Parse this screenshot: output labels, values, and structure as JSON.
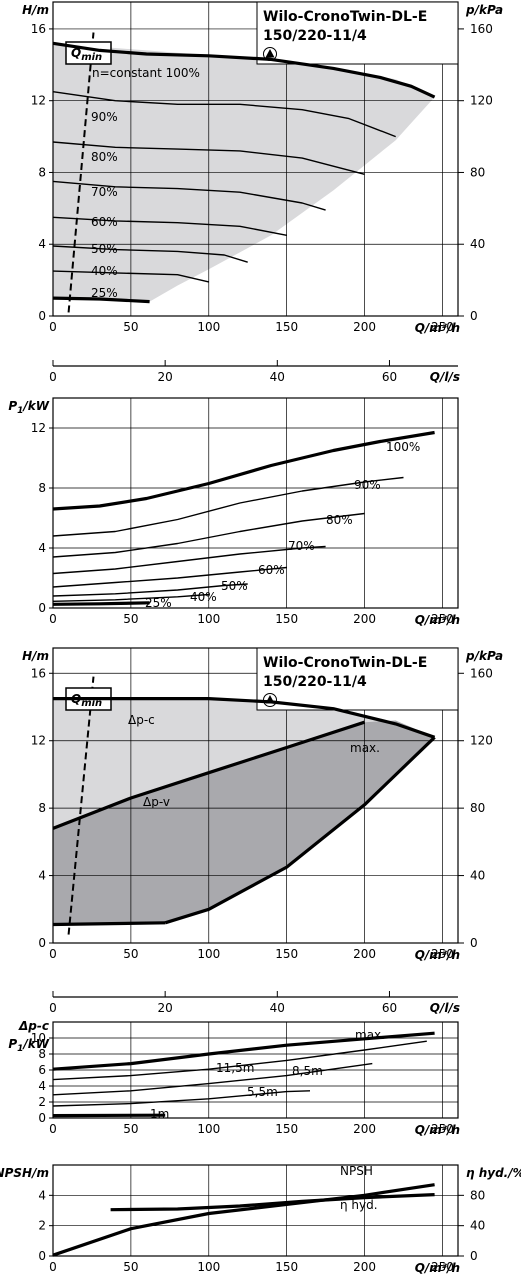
{
  "chart_data": [
    {
      "id": "head-variable",
      "type": "line",
      "title_lines": [
        "Wilo-CronoTwin-DL-E",
        "150/220-11/4"
      ],
      "ylabel": "H/m",
      "ylabel_right": "p/kPa",
      "xlabel": "Q/m³/h",
      "xlabel_secondary": "Q/l/s",
      "qmin_label": "Q",
      "qmin_sub": "min",
      "xlim": [
        0,
        260
      ],
      "ylim": [
        0,
        17.5
      ],
      "x_ticks": [
        0,
        50,
        100,
        150,
        200,
        250
      ],
      "y_ticks": [
        0,
        4,
        8,
        12,
        16
      ],
      "y_right_ticks": [
        0,
        40,
        80,
        120,
        160
      ],
      "x2_ticks": [
        0,
        20,
        40,
        60
      ],
      "area": [
        [
          0,
          15.2
        ],
        [
          60,
          14.8
        ],
        [
          120,
          14.4
        ],
        [
          180,
          13.8
        ],
        [
          220,
          13.2
        ],
        [
          245,
          12.2
        ],
        [
          220,
          9.8
        ],
        [
          180,
          7.0
        ],
        [
          140,
          4.5
        ],
        [
          100,
          2.6
        ],
        [
          80,
          1.7
        ],
        [
          62,
          0.8
        ],
        [
          0,
          1.0
        ]
      ],
      "qmin_line": [
        [
          10,
          0.2
        ],
        [
          26,
          15.8
        ]
      ],
      "series": [
        {
          "name": "n=constant 100%",
          "bold": true,
          "x": [
            0,
            30,
            60,
            100,
            140,
            180,
            210,
            230,
            245
          ],
          "y": [
            15.2,
            14.8,
            14.6,
            14.5,
            14.3,
            13.8,
            13.3,
            12.8,
            12.2
          ]
        },
        {
          "name": "90%",
          "x": [
            0,
            40,
            80,
            120,
            160,
            190,
            220
          ],
          "y": [
            12.5,
            12.0,
            11.8,
            11.8,
            11.5,
            11.0,
            10.0
          ]
        },
        {
          "name": "80%",
          "x": [
            0,
            40,
            80,
            120,
            160,
            200
          ],
          "y": [
            9.7,
            9.4,
            9.3,
            9.2,
            8.8,
            7.9
          ]
        },
        {
          "name": "70%",
          "x": [
            0,
            40,
            80,
            120,
            160,
            175
          ],
          "y": [
            7.5,
            7.2,
            7.1,
            6.9,
            6.3,
            5.9
          ]
        },
        {
          "name": "60%",
          "x": [
            0,
            40,
            80,
            120,
            150
          ],
          "y": [
            5.5,
            5.3,
            5.2,
            5.0,
            4.5
          ]
        },
        {
          "name": "50%",
          "x": [
            0,
            40,
            80,
            110,
            125
          ],
          "y": [
            3.9,
            3.7,
            3.6,
            3.4,
            3.0
          ]
        },
        {
          "name": "40%",
          "x": [
            0,
            40,
            80,
            100
          ],
          "y": [
            2.5,
            2.4,
            2.3,
            1.9
          ]
        },
        {
          "name": "25%",
          "bold": true,
          "x": [
            0,
            30,
            62
          ],
          "y": [
            1.0,
            0.95,
            0.8
          ]
        }
      ]
    },
    {
      "id": "power-variable",
      "type": "line",
      "ylabel_main": "P",
      "ylabel_sub": "1",
      "ylabel_unit": "/kW",
      "xlabel": "Q/m³/h",
      "xlim": [
        0,
        260
      ],
      "ylim": [
        0,
        14
      ],
      "x_ticks": [
        0,
        50,
        100,
        150,
        200,
        250
      ],
      "y_ticks": [
        0,
        4,
        8,
        12
      ],
      "series": [
        {
          "name": "100%",
          "bold": true,
          "x": [
            0,
            30,
            60,
            100,
            140,
            180,
            210,
            245
          ],
          "y": [
            6.6,
            6.8,
            7.3,
            8.3,
            9.5,
            10.5,
            11.1,
            11.7
          ]
        },
        {
          "name": "90%",
          "x": [
            0,
            40,
            80,
            120,
            160,
            200,
            225
          ],
          "y": [
            4.8,
            5.1,
            5.9,
            7.0,
            7.8,
            8.4,
            8.7
          ]
        },
        {
          "name": "80%",
          "x": [
            0,
            40,
            80,
            120,
            160,
            200
          ],
          "y": [
            3.4,
            3.7,
            4.3,
            5.1,
            5.8,
            6.3
          ]
        },
        {
          "name": "70%",
          "x": [
            0,
            40,
            80,
            120,
            160,
            175
          ],
          "y": [
            2.3,
            2.6,
            3.1,
            3.6,
            4.0,
            4.1
          ]
        },
        {
          "name": "60%",
          "x": [
            0,
            40,
            80,
            120,
            150
          ],
          "y": [
            1.4,
            1.7,
            2.0,
            2.4,
            2.7
          ]
        },
        {
          "name": "50%",
          "x": [
            0,
            40,
            80,
            110,
            125
          ],
          "y": [
            0.8,
            0.95,
            1.2,
            1.5,
            1.6
          ]
        },
        {
          "name": "40%",
          "x": [
            0,
            40,
            80,
            100
          ],
          "y": [
            0.45,
            0.55,
            0.75,
            0.9
          ]
        },
        {
          "name": "25%",
          "bold": true,
          "x": [
            0,
            30,
            62
          ],
          "y": [
            0.25,
            0.28,
            0.35
          ]
        }
      ]
    },
    {
      "id": "head-dp",
      "type": "area",
      "title_lines": [
        "Wilo-CronoTwin-DL-E",
        "150/220-11/4"
      ],
      "ylabel": "H/m",
      "ylabel_right": "p/kPa",
      "xlabel": "Q/m³/h",
      "xlabel_secondary": "Q/l/s",
      "qmin_label": "Q",
      "qmin_sub": "min",
      "xlim": [
        0,
        260
      ],
      "ylim": [
        0,
        17.5
      ],
      "x_ticks": [
        0,
        50,
        100,
        150,
        200,
        250
      ],
      "y_ticks": [
        0,
        4,
        8,
        12,
        16
      ],
      "y_right_ticks": [
        0,
        40,
        80,
        120,
        160
      ],
      "x2_ticks": [
        0,
        20,
        40,
        60
      ],
      "qmin_line": [
        [
          10,
          0.5
        ],
        [
          26,
          15.8
        ]
      ],
      "dpc_area": [
        [
          0,
          14.5
        ],
        [
          100,
          14.5
        ],
        [
          150,
          14.2
        ],
        [
          200,
          13.5
        ],
        [
          245,
          12.2
        ],
        [
          200,
          8.2
        ],
        [
          150,
          4.5
        ],
        [
          100,
          2.0
        ],
        [
          72,
          1.2
        ],
        [
          0,
          1.1
        ]
      ],
      "dpv_area": [
        [
          0,
          6.8
        ],
        [
          50,
          8.6
        ],
        [
          100,
          10.1
        ],
        [
          150,
          11.6
        ],
        [
          200,
          13.1
        ],
        [
          220,
          13.2
        ],
        [
          245,
          12.2
        ],
        [
          200,
          8.2
        ],
        [
          150,
          4.5
        ],
        [
          100,
          2.0
        ],
        [
          72,
          1.2
        ],
        [
          0,
          1.1
        ]
      ],
      "series": [
        {
          "name": "Δp-c",
          "bold": true,
          "x": [
            0,
            50,
            100,
            140,
            180,
            220,
            245
          ],
          "y": [
            14.5,
            14.5,
            14.5,
            14.3,
            13.9,
            13.0,
            12.2
          ]
        },
        {
          "name": "Δp-v",
          "bold": true,
          "x": [
            0,
            50,
            100,
            150,
            200
          ],
          "y": [
            6.8,
            8.6,
            10.1,
            11.6,
            13.1
          ]
        },
        {
          "name": "max.",
          "bold": true,
          "x": [
            72,
            100,
            150,
            200,
            245
          ],
          "y": [
            1.2,
            2.0,
            4.5,
            8.2,
            12.2
          ]
        },
        {
          "name": "min",
          "bold": true,
          "x": [
            0,
            72
          ],
          "y": [
            1.1,
            1.2
          ]
        }
      ]
    },
    {
      "id": "power-dp",
      "type": "line",
      "ylabel_top": "Δp-c",
      "ylabel_main": "P",
      "ylabel_sub": "1",
      "ylabel_unit": "/kW",
      "xlabel": "Q/m³/h",
      "xlim": [
        0,
        260
      ],
      "ylim": [
        0,
        12
      ],
      "x_ticks": [
        0,
        50,
        100,
        150,
        200,
        250
      ],
      "y_ticks": [
        0,
        2,
        4,
        6,
        8,
        10
      ],
      "series": [
        {
          "name": "max.",
          "bold": true,
          "x": [
            0,
            50,
            100,
            150,
            200,
            245
          ],
          "y": [
            6.1,
            6.8,
            8.0,
            9.1,
            9.9,
            10.6
          ]
        },
        {
          "name": "11,5m",
          "x": [
            0,
            50,
            100,
            150,
            200,
            240
          ],
          "y": [
            4.8,
            5.3,
            6.1,
            7.2,
            8.5,
            9.6
          ]
        },
        {
          "name": "8,5m",
          "x": [
            0,
            50,
            100,
            150,
            205
          ],
          "y": [
            2.9,
            3.4,
            4.3,
            5.3,
            6.8
          ]
        },
        {
          "name": "5,5m",
          "x": [
            0,
            50,
            100,
            150,
            165
          ],
          "y": [
            1.5,
            1.8,
            2.4,
            3.3,
            3.4
          ]
        },
        {
          "name": "1m",
          "bold": true,
          "x": [
            0,
            72
          ],
          "y": [
            0.3,
            0.35
          ]
        }
      ]
    },
    {
      "id": "npsh",
      "type": "line",
      "ylabel": "NPSH/m",
      "ylabel_right": "η hyd./%",
      "xlabel": "Q/m³/h",
      "xlim": [
        0,
        260
      ],
      "ylim": [
        0,
        6
      ],
      "x_ticks": [
        0,
        50,
        100,
        150,
        200,
        250
      ],
      "y_ticks": [
        0,
        2,
        4
      ],
      "y_right_ticks": [
        0,
        40,
        80
      ],
      "series": [
        {
          "name": "NPSH",
          "bold": true,
          "x": [
            0,
            50,
            100,
            150,
            200,
            245
          ],
          "y": [
            0.05,
            1.8,
            2.8,
            3.4,
            4.0,
            4.7
          ]
        },
        {
          "name": "η hyd.",
          "bold": true,
          "x": [
            37,
            80,
            120,
            160,
            200,
            245
          ],
          "y": [
            3.05,
            3.1,
            3.3,
            3.6,
            3.85,
            4.05
          ]
        }
      ]
    }
  ]
}
